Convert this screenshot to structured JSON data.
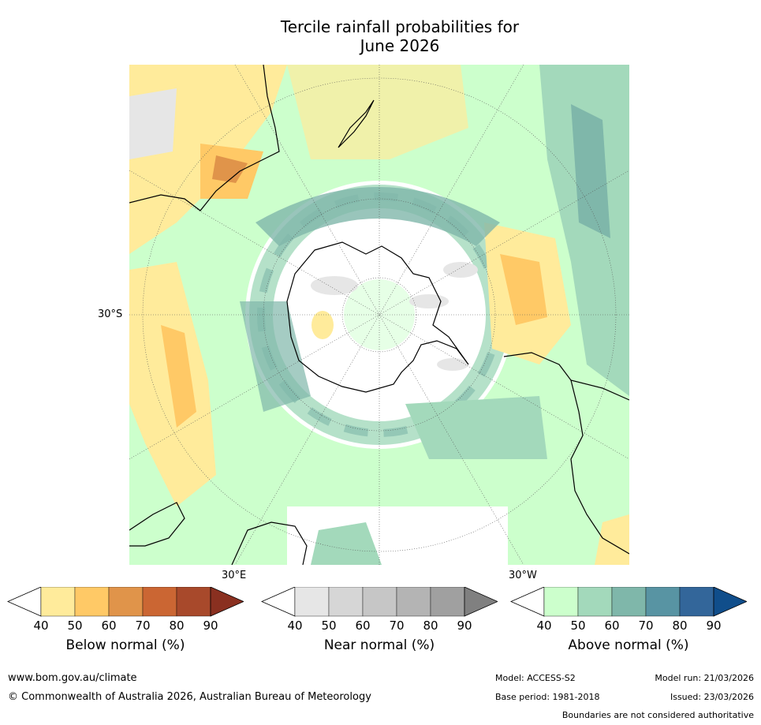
{
  "title": {
    "line1": "Tercile rainfall probabilities for",
    "line2": "June 2026"
  },
  "map": {
    "projection": "south-polar-stereographic",
    "lat_label": "30°S",
    "lon_labels": {
      "east": "30°E",
      "west": "30°W"
    }
  },
  "legends": [
    {
      "label": "Below normal (%)",
      "ticks": [
        "40",
        "50",
        "60",
        "70",
        "80",
        "90"
      ],
      "colors": [
        "#ffffff",
        "#ffeb9b",
        "#ffc966",
        "#e0944a",
        "#cb6633",
        "#a8492b",
        "#8a3020"
      ]
    },
    {
      "label": "Near normal (%)",
      "ticks": [
        "40",
        "50",
        "60",
        "70",
        "80",
        "90"
      ],
      "colors": [
        "#ffffff",
        "#e6e6e6",
        "#d6d6d6",
        "#c6c6c6",
        "#b4b4b4",
        "#a0a0a0",
        "#808080"
      ]
    },
    {
      "label": "Above normal (%)",
      "ticks": [
        "40",
        "50",
        "60",
        "70",
        "80",
        "90"
      ],
      "colors": [
        "#ffffff",
        "#ccffcc",
        "#a3d9bb",
        "#7fb7aa",
        "#5894a3",
        "#33669a",
        "#104e8b"
      ]
    }
  ],
  "footer": {
    "website": "www.bom.gov.au/climate",
    "copyright": "© Commonwealth of Australia 2026, Australian Bureau of Meteorology",
    "model": "Model: ACCESS-S2",
    "model_run": "Model run: 21/03/2026",
    "base_period": "Base period: 1981-2018",
    "issued": "Issued: 23/03/2026",
    "disclaimer": "Boundaries are not considered authoritative"
  }
}
